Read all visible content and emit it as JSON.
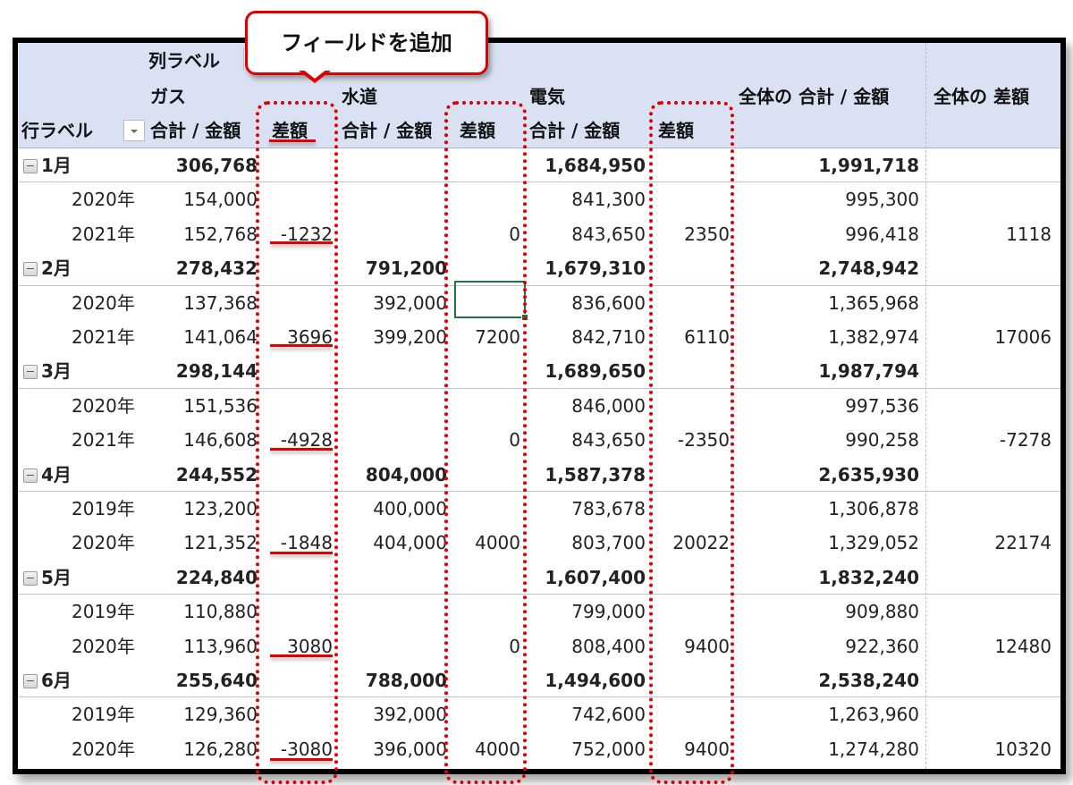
{
  "callout": {
    "text": "フィールドを追加"
  },
  "header": {
    "column_labels": "列ラベル",
    "row_labels": "行ラベル",
    "groups": [
      "ガス",
      "水道",
      "電気"
    ],
    "sum_label": "合計 / 金額",
    "diff_label": "差額",
    "grand_sum_label": "全体の 合計 / 金額",
    "grand_diff_label": "全体の 差額"
  },
  "rows": [
    {
      "type": "month",
      "label": "1月",
      "gas_sum": "306,768",
      "gas_diff": "",
      "water_sum": "",
      "water_diff": "",
      "elec_sum": "1,684,950",
      "elec_diff": "",
      "total_sum": "1,991,718",
      "total_diff": ""
    },
    {
      "type": "year",
      "label": "2020年",
      "gas_sum": "154,000",
      "gas_diff": "",
      "water_sum": "",
      "water_diff": "",
      "elec_sum": "841,300",
      "elec_diff": "",
      "total_sum": "995,300",
      "total_diff": ""
    },
    {
      "type": "year",
      "label": "2021年",
      "gas_sum": "152,768",
      "gas_diff": "-1232",
      "water_sum": "",
      "water_diff": "0",
      "elec_sum": "843,650",
      "elec_diff": "2350",
      "total_sum": "996,418",
      "total_diff": "1118"
    },
    {
      "type": "month",
      "label": "2月",
      "gas_sum": "278,432",
      "gas_diff": "",
      "water_sum": "791,200",
      "water_diff": "",
      "elec_sum": "1,679,310",
      "elec_diff": "",
      "total_sum": "2,748,942",
      "total_diff": ""
    },
    {
      "type": "year",
      "label": "2020年",
      "gas_sum": "137,368",
      "gas_diff": "",
      "water_sum": "392,000",
      "water_diff": "",
      "elec_sum": "836,600",
      "elec_diff": "",
      "total_sum": "1,365,968",
      "total_diff": ""
    },
    {
      "type": "year",
      "label": "2021年",
      "gas_sum": "141,064",
      "gas_diff": "3696",
      "water_sum": "399,200",
      "water_diff": "7200",
      "elec_sum": "842,710",
      "elec_diff": "6110",
      "total_sum": "1,382,974",
      "total_diff": "17006"
    },
    {
      "type": "month",
      "label": "3月",
      "gas_sum": "298,144",
      "gas_diff": "",
      "water_sum": "",
      "water_diff": "",
      "elec_sum": "1,689,650",
      "elec_diff": "",
      "total_sum": "1,987,794",
      "total_diff": ""
    },
    {
      "type": "year",
      "label": "2020年",
      "gas_sum": "151,536",
      "gas_diff": "",
      "water_sum": "",
      "water_diff": "",
      "elec_sum": "846,000",
      "elec_diff": "",
      "total_sum": "997,536",
      "total_diff": ""
    },
    {
      "type": "year",
      "label": "2021年",
      "gas_sum": "146,608",
      "gas_diff": "-4928",
      "water_sum": "",
      "water_diff": "0",
      "elec_sum": "843,650",
      "elec_diff": "-2350",
      "total_sum": "990,258",
      "total_diff": "-7278"
    },
    {
      "type": "month",
      "label": "4月",
      "gas_sum": "244,552",
      "gas_diff": "",
      "water_sum": "804,000",
      "water_diff": "",
      "elec_sum": "1,587,378",
      "elec_diff": "",
      "total_sum": "2,635,930",
      "total_diff": ""
    },
    {
      "type": "year",
      "label": "2019年",
      "gas_sum": "123,200",
      "gas_diff": "",
      "water_sum": "400,000",
      "water_diff": "",
      "elec_sum": "783,678",
      "elec_diff": "",
      "total_sum": "1,306,878",
      "total_diff": ""
    },
    {
      "type": "year",
      "label": "2020年",
      "gas_sum": "121,352",
      "gas_diff": "-1848",
      "water_sum": "404,000",
      "water_diff": "4000",
      "elec_sum": "803,700",
      "elec_diff": "20022",
      "total_sum": "1,329,052",
      "total_diff": "22174"
    },
    {
      "type": "month",
      "label": "5月",
      "gas_sum": "224,840",
      "gas_diff": "",
      "water_sum": "",
      "water_diff": "",
      "elec_sum": "1,607,400",
      "elec_diff": "",
      "total_sum": "1,832,240",
      "total_diff": ""
    },
    {
      "type": "year",
      "label": "2019年",
      "gas_sum": "110,880",
      "gas_diff": "",
      "water_sum": "",
      "water_diff": "",
      "elec_sum": "799,000",
      "elec_diff": "",
      "total_sum": "909,880",
      "total_diff": ""
    },
    {
      "type": "year",
      "label": "2020年",
      "gas_sum": "113,960",
      "gas_diff": "3080",
      "water_sum": "",
      "water_diff": "0",
      "elec_sum": "808,400",
      "elec_diff": "9400",
      "total_sum": "922,360",
      "total_diff": "12480"
    },
    {
      "type": "month",
      "label": "6月",
      "gas_sum": "255,640",
      "gas_diff": "",
      "water_sum": "788,000",
      "water_diff": "",
      "elec_sum": "1,494,600",
      "elec_diff": "",
      "total_sum": "2,538,240",
      "total_diff": ""
    },
    {
      "type": "year",
      "label": "2019年",
      "gas_sum": "129,360",
      "gas_diff": "",
      "water_sum": "392,000",
      "water_diff": "",
      "elec_sum": "742,600",
      "elec_diff": "",
      "total_sum": "1,263,960",
      "total_diff": ""
    },
    {
      "type": "year",
      "label": "2020年",
      "gas_sum": "126,280",
      "gas_diff": "-3080",
      "water_sum": "396,000",
      "water_diff": "4000",
      "elec_sum": "752,000",
      "elec_diff": "9400",
      "total_sum": "1,274,280",
      "total_diff": "10320"
    }
  ],
  "colors": {
    "header_bg": "#d9e1f2",
    "highlight_red": "#e00000",
    "selection_green": "#217346"
  }
}
